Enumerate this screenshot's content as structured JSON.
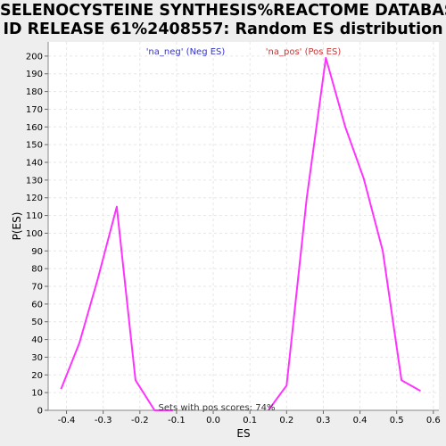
{
  "chart_data": {
    "type": "line",
    "title_lines": [
      "SELENOCYSTEINE SYNTHESIS%REACTOME DATABASE",
      "ID RELEASE 61%2408557: Random ES distribution"
    ],
    "xlabel": "ES",
    "ylabel": "P(ES)",
    "xlim": [
      -0.45,
      0.615
    ],
    "ylim": [
      0,
      208
    ],
    "x_ticks": [
      -0.4,
      -0.3,
      -0.2,
      -0.1,
      0.0,
      0.1,
      0.2,
      0.3,
      0.4,
      0.5,
      0.6
    ],
    "x_tick_labels": [
      "-0.4",
      "-0.3",
      "-0.2",
      "-0.1",
      "0.0",
      "0.1",
      "0.2",
      "0.3",
      "0.4",
      "0.5",
      "0.6"
    ],
    "y_ticks": [
      0,
      10,
      20,
      30,
      40,
      50,
      60,
      70,
      80,
      90,
      100,
      110,
      120,
      130,
      140,
      150,
      160,
      170,
      180,
      190,
      200
    ],
    "grid": true,
    "series": [
      {
        "name": "'na_neg' (Neg ES)",
        "legend_color": "#3333cc",
        "line_color": "#ff33ff",
        "x": [
          -0.415,
          -0.365,
          -0.315,
          -0.263,
          -0.212,
          -0.16,
          -0.11
        ],
        "y": [
          12,
          38,
          74,
          115,
          17,
          0,
          0
        ]
      },
      {
        "name": "'na_pos' (Pos ES)",
        "legend_color": "#cc3333",
        "line_color": "#ff33ff",
        "x": [
          0.15,
          0.2,
          0.255,
          0.307,
          0.36,
          0.41,
          0.462,
          0.513,
          0.565
        ],
        "y": [
          0,
          14,
          120,
          199,
          160,
          131,
          90,
          17,
          11
        ]
      }
    ],
    "annotation": "Sets with pos scores: 74%"
  }
}
